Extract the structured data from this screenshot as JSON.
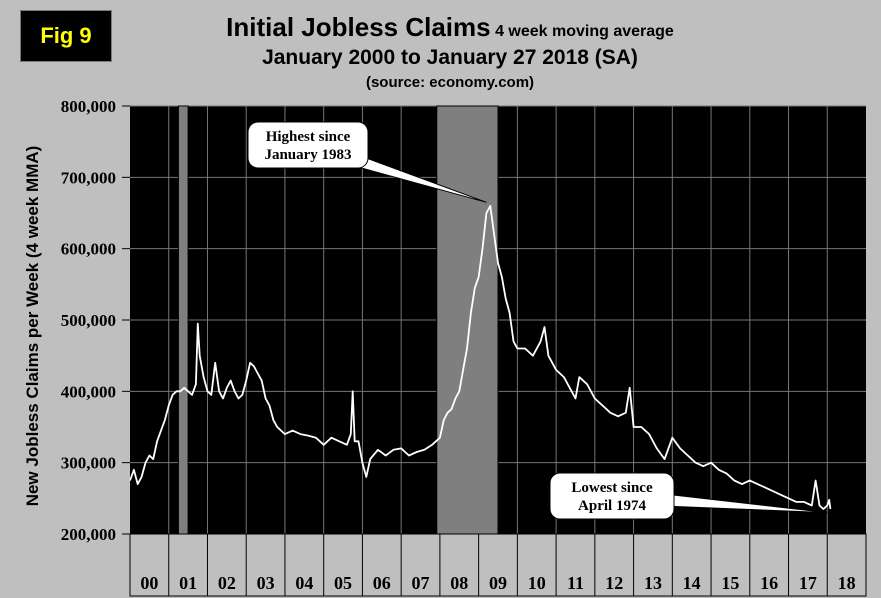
{
  "badge": "Fig 9",
  "chart_data": {
    "type": "line",
    "title": "Initial Jobless Claims",
    "title_suffix": "4 week moving average",
    "subtitle": "January 2000 to January 27 2018 (SA)",
    "source": "(source: economy.com)",
    "ylabel": "New Jobless Claims per Week (4 week MMA)",
    "xlabel": "",
    "ylim": [
      200000,
      800000
    ],
    "xlim": [
      2000.0,
      2019.0
    ],
    "yticks": [
      200000,
      300000,
      400000,
      500000,
      600000,
      700000,
      800000
    ],
    "ytick_labels": [
      "200,000",
      "300,000",
      "400,000",
      "500,000",
      "600,000",
      "700,000",
      "800,000"
    ],
    "x_categories": [
      "00",
      "01",
      "02",
      "03",
      "04",
      "05",
      "06",
      "07",
      "08",
      "09",
      "10",
      "11",
      "12",
      "13",
      "14",
      "15",
      "16",
      "17",
      "18"
    ],
    "grid": true,
    "recessions": [
      {
        "start": 2001.25,
        "end": 2001.5
      },
      {
        "start": 2007.92,
        "end": 2009.5
      }
    ],
    "annotations": [
      {
        "text": "Highest since January 1983",
        "lines": [
          "Highest since",
          "January 1983"
        ],
        "x": 2009.2,
        "y": 665000
      },
      {
        "text": "Lowest since April 1974",
        "lines": [
          "Lowest since",
          "April 1974"
        ],
        "x": 2018.0,
        "y": 230000
      }
    ],
    "series": [
      {
        "x": [
          2000.0,
          2000.1,
          2000.2,
          2000.3,
          2000.4,
          2000.5,
          2000.6,
          2000.7,
          2000.8,
          2000.9,
          2001.0,
          2001.1,
          2001.2,
          2001.3,
          2001.4,
          2001.5,
          2001.6,
          2001.7,
          2001.75,
          2001.8,
          2001.9,
          2002.0,
          2002.1,
          2002.2,
          2002.3,
          2002.4,
          2002.5,
          2002.6,
          2002.7,
          2002.8,
          2002.9,
          2003.0,
          2003.1,
          2003.2,
          2003.3,
          2003.4,
          2003.5,
          2003.6,
          2003.7,
          2003.8,
          2003.9,
          2004.0,
          2004.2,
          2004.4,
          2004.6,
          2004.8,
          2005.0,
          2005.2,
          2005.4,
          2005.6,
          2005.7,
          2005.75,
          2005.8,
          2005.9,
          2006.0,
          2006.1,
          2006.2,
          2006.4,
          2006.6,
          2006.8,
          2007.0,
          2007.2,
          2007.4,
          2007.6,
          2007.8,
          2008.0,
          2008.1,
          2008.2,
          2008.3,
          2008.4,
          2008.5,
          2008.6,
          2008.7,
          2008.8,
          2008.9,
          2009.0,
          2009.1,
          2009.2,
          2009.3,
          2009.4,
          2009.5,
          2009.6,
          2009.7,
          2009.8,
          2009.9,
          2010.0,
          2010.2,
          2010.4,
          2010.6,
          2010.7,
          2010.8,
          2011.0,
          2011.2,
          2011.4,
          2011.5,
          2011.6,
          2011.8,
          2012.0,
          2012.2,
          2012.4,
          2012.6,
          2012.8,
          2012.9,
          2013.0,
          2013.2,
          2013.4,
          2013.6,
          2013.8,
          2014.0,
          2014.2,
          2014.4,
          2014.6,
          2014.8,
          2015.0,
          2015.2,
          2015.4,
          2015.6,
          2015.8,
          2016.0,
          2016.2,
          2016.4,
          2016.6,
          2016.8,
          2017.0,
          2017.2,
          2017.4,
          2017.6,
          2017.7,
          2017.8,
          2017.9,
          2018.0,
          2018.05,
          2018.08
        ],
        "values": [
          275000,
          290000,
          270000,
          280000,
          300000,
          310000,
          305000,
          330000,
          345000,
          360000,
          380000,
          395000,
          400000,
          400000,
          405000,
          400000,
          395000,
          410000,
          495000,
          450000,
          420000,
          400000,
          395000,
          440000,
          400000,
          390000,
          405000,
          415000,
          400000,
          390000,
          395000,
          415000,
          440000,
          435000,
          425000,
          415000,
          390000,
          380000,
          360000,
          350000,
          345000,
          340000,
          345000,
          340000,
          338000,
          335000,
          325000,
          335000,
          330000,
          325000,
          340000,
          400000,
          330000,
          330000,
          300000,
          280000,
          305000,
          318000,
          310000,
          318000,
          320000,
          310000,
          315000,
          318000,
          325000,
          335000,
          360000,
          370000,
          375000,
          390000,
          400000,
          430000,
          460000,
          510000,
          545000,
          560000,
          600000,
          650000,
          660000,
          620000,
          580000,
          560000,
          530000,
          510000,
          470000,
          460000,
          460000,
          450000,
          470000,
          490000,
          450000,
          430000,
          420000,
          400000,
          390000,
          420000,
          410000,
          390000,
          380000,
          370000,
          365000,
          370000,
          405000,
          350000,
          350000,
          340000,
          320000,
          305000,
          335000,
          320000,
          310000,
          300000,
          295000,
          300000,
          290000,
          285000,
          275000,
          270000,
          275000,
          270000,
          265000,
          260000,
          255000,
          250000,
          245000,
          245000,
          240000,
          275000,
          240000,
          235000,
          240000,
          248000,
          235000
        ]
      }
    ]
  }
}
